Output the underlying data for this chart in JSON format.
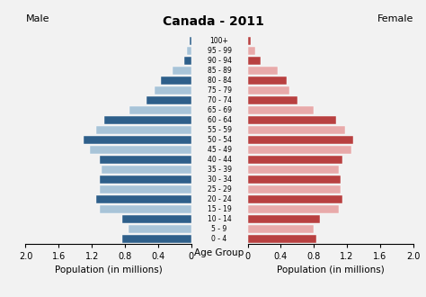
{
  "title": "Canada - 2011",
  "male_label": "Male",
  "female_label": "Female",
  "xlabel_left": "Population (in millions)",
  "xlabel_center": "Age Group",
  "xlabel_right": "Population (in millions)",
  "age_groups": [
    "0 - 4",
    "5 - 9",
    "10 - 14",
    "15 - 19",
    "20 - 24",
    "25 - 29",
    "30 - 34",
    "35 - 39",
    "40 - 44",
    "45 - 49",
    "50 - 54",
    "55 - 59",
    "60 - 64",
    "65 - 69",
    "70 - 74",
    "75 - 79",
    "80 - 84",
    "85 - 89",
    "90 - 94",
    "95 - 99",
    "100+"
  ],
  "male_values": [
    0.83,
    0.76,
    0.83,
    1.1,
    1.15,
    1.1,
    1.1,
    1.08,
    1.1,
    1.22,
    1.3,
    1.15,
    1.05,
    0.75,
    0.54,
    0.44,
    0.37,
    0.22,
    0.08,
    0.05,
    0.02
  ],
  "female_values": [
    0.83,
    0.8,
    0.87,
    1.1,
    1.15,
    1.12,
    1.12,
    1.1,
    1.15,
    1.25,
    1.28,
    1.18,
    1.07,
    0.8,
    0.6,
    0.5,
    0.47,
    0.36,
    0.16,
    0.09,
    0.04
  ],
  "male_dark_color": "#2e5f8a",
  "male_light_color": "#a8c4d8",
  "female_dark_color": "#b84040",
  "female_light_color": "#e8aaaa",
  "background_color": "#f2f2f2",
  "xlim": 2.0,
  "xticks": [
    0,
    0.4,
    0.8,
    1.2,
    1.6,
    2.0
  ]
}
